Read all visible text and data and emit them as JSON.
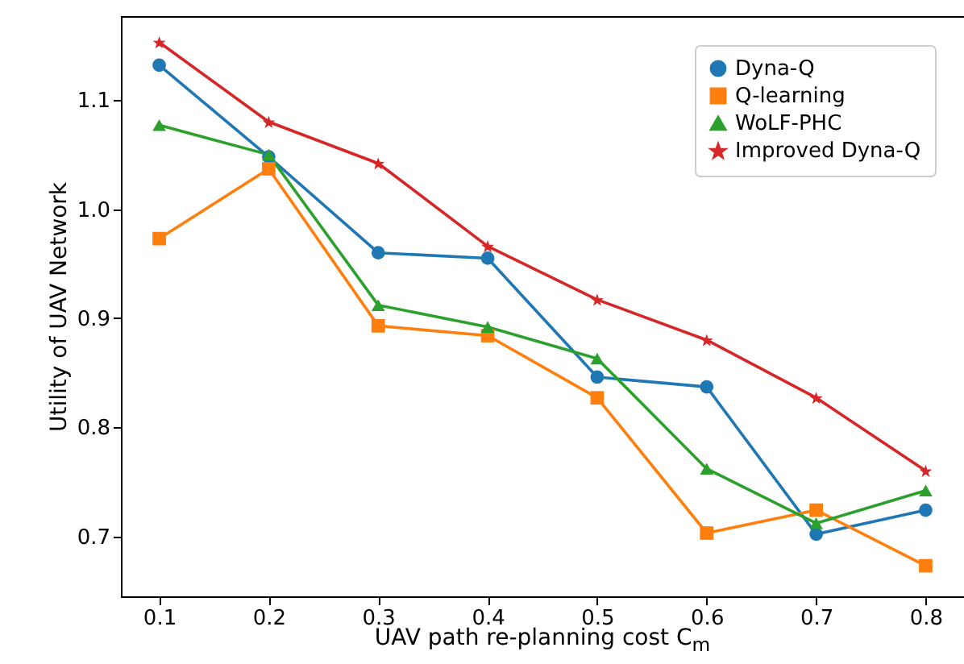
{
  "chart_data": {
    "type": "line",
    "xlabel": "UAV path re-planning cost C$_{m}$",
    "ylabel": "Utility of UAV Network",
    "x": [
      0.1,
      0.2,
      0.3,
      0.4,
      0.5,
      0.6,
      0.7,
      0.8
    ],
    "series": [
      {
        "name": "Dyna-Q",
        "color": "#1f77b4",
        "marker": "circle",
        "values": [
          1.132,
          1.048,
          0.96,
          0.955,
          0.846,
          0.837,
          0.702,
          0.724
        ]
      },
      {
        "name": "Q-learning",
        "color": "#ff7f0e",
        "marker": "square",
        "values": [
          0.973,
          1.037,
          0.893,
          0.884,
          0.827,
          0.703,
          0.724,
          0.673
        ]
      },
      {
        "name": "WoLF-PHC",
        "color": "#2ca02c",
        "marker": "triangle",
        "values": [
          1.077,
          1.05,
          0.912,
          0.892,
          0.863,
          0.762,
          0.712,
          0.742
        ]
      },
      {
        "name": "Improved Dyna-Q",
        "color": "#d62728",
        "marker": "star",
        "values": [
          1.153,
          1.08,
          1.042,
          0.966,
          0.917,
          0.88,
          0.827,
          0.76
        ]
      }
    ],
    "xlim": [
      0.065,
      0.835
    ],
    "ylim": [
      0.645,
      1.177
    ],
    "xticks": [
      0.1,
      0.2,
      0.3,
      0.4,
      0.5,
      0.6,
      0.7,
      0.8
    ],
    "yticks": [
      0.7,
      0.8,
      0.9,
      {
        "value": 1.0,
        "label": "1.0"
      },
      1.1
    ],
    "grid": false,
    "legend": "top right",
    "line_style": "solid"
  }
}
